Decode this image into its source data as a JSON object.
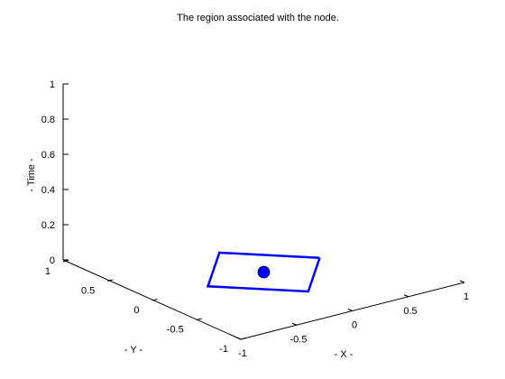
{
  "chart_data": {
    "type": "line3d",
    "title": "The region associated with the node.",
    "xlabel": "- X -",
    "ylabel": "- Y -",
    "zlabel": "- Time -",
    "xlim": [
      -1,
      1
    ],
    "ylim": [
      -1,
      1
    ],
    "zlim": [
      0,
      1
    ],
    "xticks": [
      -1,
      -0.5,
      0,
      0.5,
      1
    ],
    "xtick_labels": [
      "-1",
      "-0.5",
      "0",
      "0.5",
      "1"
    ],
    "yticks": [
      -1,
      -0.5,
      0,
      0.5,
      1
    ],
    "ytick_labels": [
      "-1",
      "-0.5",
      "0",
      "0.5",
      "1"
    ],
    "zticks": [
      0,
      0.2,
      0.4,
      0.6,
      0.8,
      1
    ],
    "ztick_labels": [
      "0",
      "0.2",
      "0.4",
      "0.6",
      "0.8",
      "1"
    ],
    "grid": false,
    "line_color": "#0000ff",
    "series": [
      {
        "type": "polygon",
        "x": [
          0.5,
          0,
          -0.5,
          0,
          0.5
        ],
        "y": [
          0,
          0.5,
          0,
          -0.5,
          0
        ],
        "z": [
          0,
          0,
          0,
          0,
          0
        ]
      },
      {
        "type": "point",
        "x": [
          0
        ],
        "y": [
          0
        ],
        "z": [
          0
        ]
      }
    ]
  }
}
